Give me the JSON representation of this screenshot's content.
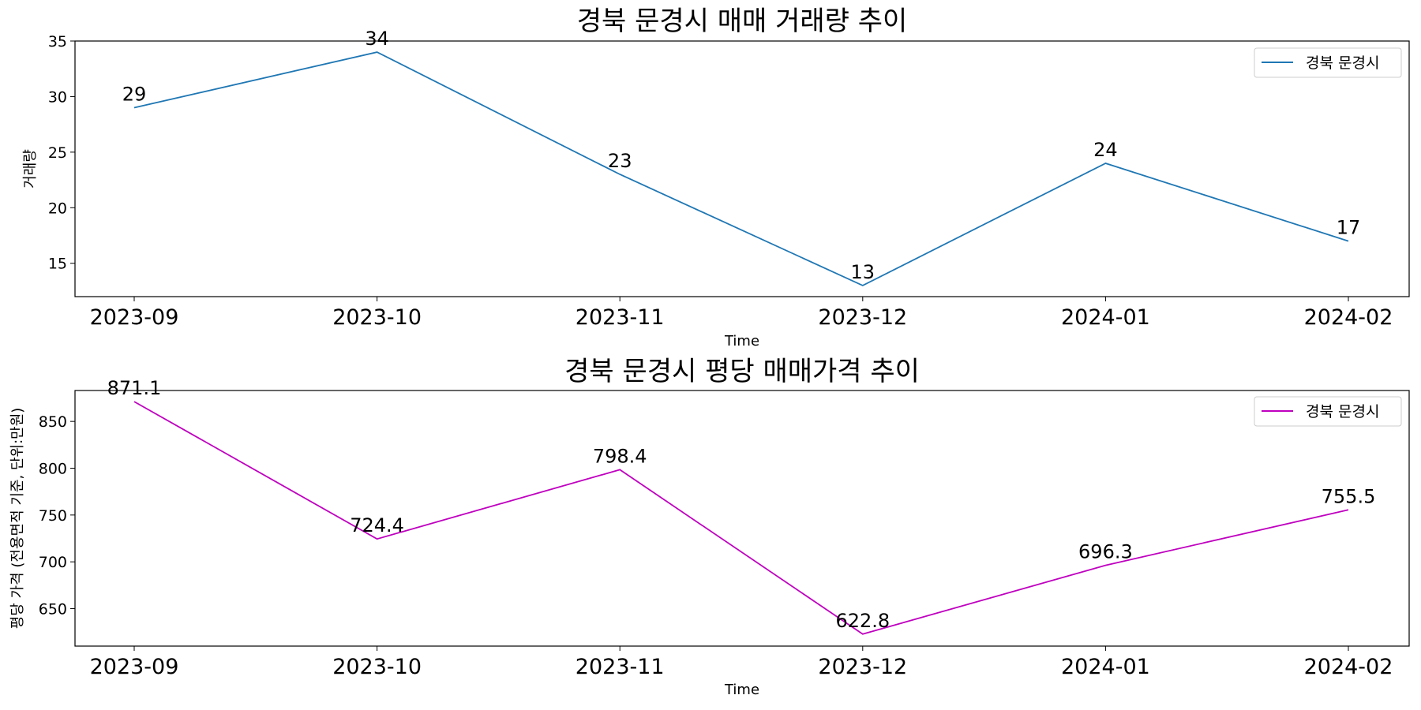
{
  "chart_data": [
    {
      "type": "line",
      "title": "경북 문경시 매매 거래량 추이",
      "xlabel": "Time",
      "ylabel": "거래량",
      "categories": [
        "2023-09",
        "2023-10",
        "2023-11",
        "2023-12",
        "2024-01",
        "2024-02"
      ],
      "series": [
        {
          "name": "경북 문경시",
          "values": [
            29,
            34,
            23,
            13,
            24,
            17
          ],
          "color": "#1f77b4"
        }
      ],
      "data_labels": [
        "29",
        "34",
        "23",
        "13",
        "24",
        "17"
      ],
      "ylim": [
        12,
        35
      ],
      "yticks": [
        15,
        20,
        25,
        30,
        35
      ],
      "ytick_labels": [
        "15",
        "20",
        "25",
        "30",
        "35"
      ],
      "grid": false,
      "legend_position": "top-right"
    },
    {
      "type": "line",
      "title": "경북 문경시 평당 매매가격 추이",
      "xlabel": "Time",
      "ylabel": "평당 가격 (전용면적 기준, 단위:만원)",
      "categories": [
        "2023-09",
        "2023-10",
        "2023-11",
        "2023-12",
        "2024-01",
        "2024-02"
      ],
      "series": [
        {
          "name": "경북 문경시",
          "values": [
            871.1,
            724.4,
            798.4,
            622.8,
            696.3,
            755.5
          ],
          "color": "#bf00bf"
        }
      ],
      "data_labels": [
        "871.1",
        "724.4",
        "798.4",
        "622.8",
        "696.3",
        "755.5"
      ],
      "ylim": [
        610,
        883
      ],
      "yticks": [
        650,
        700,
        750,
        800,
        850
      ],
      "ytick_labels": [
        "650",
        "700",
        "750",
        "800",
        "850"
      ],
      "grid": false,
      "legend_position": "top-right"
    }
  ]
}
